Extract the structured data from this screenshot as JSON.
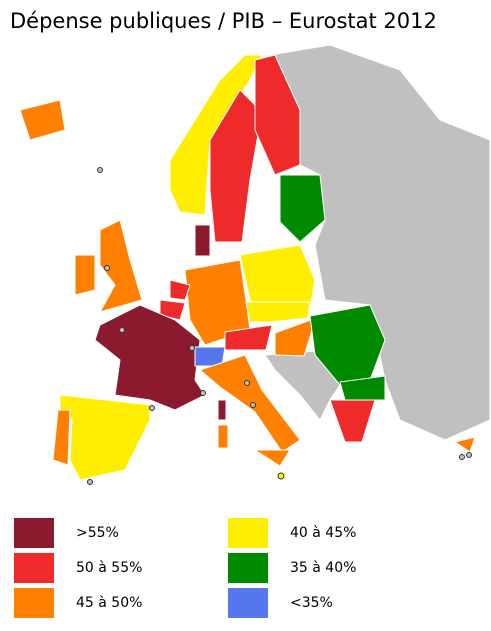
{
  "title": "Dépense publiques / PIB – Eurostat 2012",
  "legend": [
    {
      "label": ">55%",
      "color": "#8b1a2e"
    },
    {
      "label": "50 à 55%",
      "color": "#ee2a2a"
    },
    {
      "label": "45 à 50%",
      "color": "#ff8000"
    },
    {
      "label": "40 à 45%",
      "color": "#ffee00"
    },
    {
      "label": "35 à 40%",
      "color": "#008a00"
    },
    {
      "label": "<35%",
      "color": "#5577ee"
    }
  ]
}
